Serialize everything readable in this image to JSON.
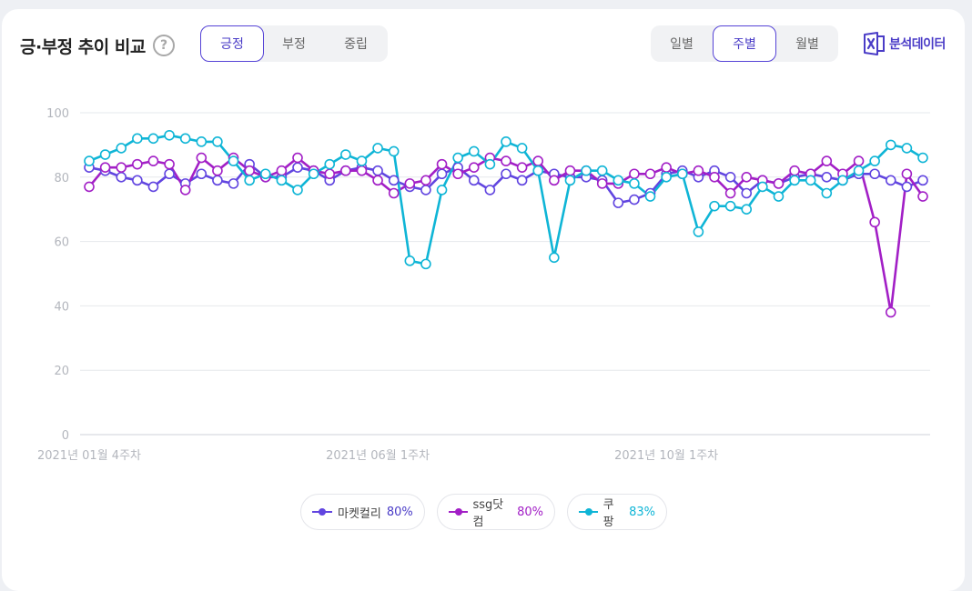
{
  "header": {
    "title": "긍·부정 추이 비교",
    "help_symbol": "?",
    "sentiment_tabs": [
      "긍정",
      "부정",
      "중립"
    ],
    "sentiment_active": 0,
    "period_tabs": [
      "일별",
      "주별",
      "월별"
    ],
    "period_active": 1,
    "export_label": "분석데이터"
  },
  "colors": {
    "accent": "#4a3cc7",
    "series": [
      "#6145e0",
      "#a21fc6",
      "#0fb5d6"
    ]
  },
  "legend": [
    {
      "name": "마켓컬리",
      "pct": "80%"
    },
    {
      "name": "ssg닷컴",
      "pct": "80%"
    },
    {
      "name": "쿠팡",
      "pct": "83%"
    }
  ],
  "chart_data": {
    "type": "line",
    "ylim": [
      0,
      100
    ],
    "yticks": [
      "0",
      "20",
      "40",
      "60",
      "80",
      "100"
    ],
    "xtick_labels": [
      {
        "index": 0,
        "label": "2021년 01월 4주차"
      },
      {
        "index": 18,
        "label": "2021년 06월 1주차"
      },
      {
        "index": 36,
        "label": "2021년 10월 1주차"
      }
    ],
    "grid": true,
    "legend_position": "bottom-center",
    "series": [
      {
        "name": "마켓컬리",
        "values": [
          83,
          82,
          80,
          79,
          77,
          81,
          78,
          81,
          79,
          78,
          84,
          80,
          80,
          83,
          82,
          79,
          82,
          83,
          82,
          79,
          77,
          76,
          81,
          83,
          79,
          76,
          81,
          79,
          82,
          81,
          80,
          80,
          79,
          72,
          73,
          75,
          81,
          82,
          80,
          82,
          80,
          75,
          79,
          78,
          80,
          81,
          80,
          79,
          81,
          81,
          79,
          77,
          79
        ]
      },
      {
        "name": "ssg닷컴",
        "values": [
          77,
          83,
          83,
          84,
          85,
          84,
          76,
          86,
          82,
          86,
          82,
          80,
          82,
          86,
          82,
          81,
          82,
          82,
          79,
          75,
          78,
          79,
          84,
          81,
          83,
          86,
          85,
          83,
          85,
          79,
          82,
          82,
          78,
          78,
          81,
          81,
          83,
          81,
          82,
          80,
          75,
          80,
          79,
          78,
          82,
          81,
          85,
          81,
          85,
          66,
          38,
          81,
          74
        ]
      },
      {
        "name": "쿠팡",
        "values": [
          85,
          87,
          89,
          92,
          92,
          93,
          92,
          91,
          91,
          85,
          79,
          81,
          79,
          76,
          81,
          84,
          87,
          85,
          89,
          88,
          54,
          53,
          76,
          86,
          88,
          84,
          91,
          89,
          82,
          55,
          79,
          82,
          82,
          79,
          78,
          74,
          80,
          81,
          63,
          71,
          71,
          70,
          77,
          74,
          79,
          79,
          75,
          79,
          82,
          85,
          90,
          89,
          86
        ]
      }
    ]
  }
}
